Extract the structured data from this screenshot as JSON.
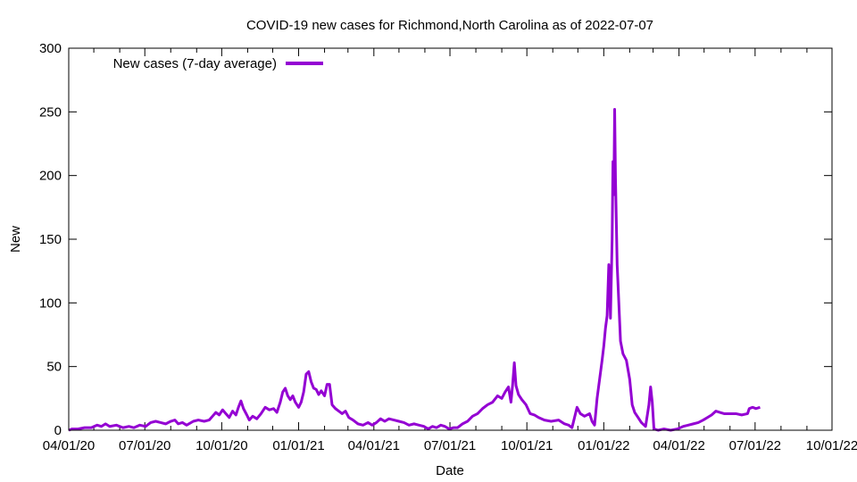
{
  "chart_data": {
    "type": "line",
    "title": "COVID-19 new cases for Richmond,North Carolina as of 2022-07-07",
    "xlabel": "Date",
    "ylabel": "New",
    "ylim": [
      0,
      300
    ],
    "xlim": [
      "2020-04-01",
      "2022-10-01"
    ],
    "y_ticks": [
      "0",
      "50",
      "100",
      "150",
      "200",
      "250",
      "300"
    ],
    "x_ticks": [
      {
        "date": "2020-04-01",
        "label": "04/01/20"
      },
      {
        "date": "2020-07-01",
        "label": "07/01/20"
      },
      {
        "date": "2020-10-01",
        "label": "10/01/20"
      },
      {
        "date": "2021-01-01",
        "label": "01/01/21"
      },
      {
        "date": "2021-04-01",
        "label": "04/01/21"
      },
      {
        "date": "2021-07-01",
        "label": "07/01/21"
      },
      {
        "date": "2021-10-01",
        "label": "10/01/21"
      },
      {
        "date": "2022-01-01",
        "label": "01/01/22"
      },
      {
        "date": "2022-04-01",
        "label": "04/01/22"
      },
      {
        "date": "2022-07-01",
        "label": "07/01/22"
      },
      {
        "date": "2022-10-01",
        "label": "10/01/22"
      }
    ],
    "grid": false,
    "legend_position": "top-left",
    "series": [
      {
        "name": "New cases (7-day average)",
        "color": "#9400d3",
        "points": [
          [
            "2020-04-01",
            0
          ],
          [
            "2020-04-05",
            1
          ],
          [
            "2020-04-12",
            1
          ],
          [
            "2020-04-20",
            2
          ],
          [
            "2020-04-28",
            2
          ],
          [
            "2020-05-05",
            4
          ],
          [
            "2020-05-10",
            3
          ],
          [
            "2020-05-15",
            5
          ],
          [
            "2020-05-20",
            3
          ],
          [
            "2020-05-28",
            4
          ],
          [
            "2020-06-05",
            2
          ],
          [
            "2020-06-12",
            3
          ],
          [
            "2020-06-18",
            2
          ],
          [
            "2020-06-25",
            4
          ],
          [
            "2020-07-02",
            3
          ],
          [
            "2020-07-08",
            6
          ],
          [
            "2020-07-14",
            7
          ],
          [
            "2020-07-20",
            6
          ],
          [
            "2020-07-26",
            5
          ],
          [
            "2020-08-01",
            7
          ],
          [
            "2020-08-06",
            8
          ],
          [
            "2020-08-10",
            5
          ],
          [
            "2020-08-15",
            6
          ],
          [
            "2020-08-20",
            4
          ],
          [
            "2020-08-28",
            7
          ],
          [
            "2020-09-03",
            8
          ],
          [
            "2020-09-10",
            7
          ],
          [
            "2020-09-16",
            8
          ],
          [
            "2020-09-20",
            11
          ],
          [
            "2020-09-24",
            14
          ],
          [
            "2020-09-28",
            12
          ],
          [
            "2020-10-02",
            16
          ],
          [
            "2020-10-06",
            13
          ],
          [
            "2020-10-10",
            10
          ],
          [
            "2020-10-14",
            15
          ],
          [
            "2020-10-18",
            12
          ],
          [
            "2020-10-21",
            18
          ],
          [
            "2020-10-24",
            23
          ],
          [
            "2020-10-27",
            17
          ],
          [
            "2020-10-31",
            12
          ],
          [
            "2020-11-03",
            8
          ],
          [
            "2020-11-07",
            11
          ],
          [
            "2020-11-12",
            9
          ],
          [
            "2020-11-17",
            13
          ],
          [
            "2020-11-22",
            18
          ],
          [
            "2020-11-27",
            16
          ],
          [
            "2020-12-02",
            17
          ],
          [
            "2020-12-06",
            14
          ],
          [
            "2020-12-10",
            22
          ],
          [
            "2020-12-13",
            30
          ],
          [
            "2020-12-16",
            33
          ],
          [
            "2020-12-19",
            27
          ],
          [
            "2020-12-22",
            24
          ],
          [
            "2020-12-25",
            27
          ],
          [
            "2020-12-28",
            22
          ],
          [
            "2021-01-01",
            18
          ],
          [
            "2021-01-04",
            22
          ],
          [
            "2021-01-07",
            30
          ],
          [
            "2021-01-10",
            44
          ],
          [
            "2021-01-13",
            46
          ],
          [
            "2021-01-16",
            38
          ],
          [
            "2021-01-19",
            33
          ],
          [
            "2021-01-22",
            32
          ],
          [
            "2021-01-25",
            28
          ],
          [
            "2021-01-28",
            31
          ],
          [
            "2021-02-01",
            27
          ],
          [
            "2021-02-04",
            36
          ],
          [
            "2021-02-07",
            36
          ],
          [
            "2021-02-10",
            20
          ],
          [
            "2021-02-14",
            17
          ],
          [
            "2021-02-18",
            15
          ],
          [
            "2021-02-22",
            13
          ],
          [
            "2021-02-26",
            15
          ],
          [
            "2021-03-02",
            10
          ],
          [
            "2021-03-07",
            8
          ],
          [
            "2021-03-13",
            5
          ],
          [
            "2021-03-19",
            4
          ],
          [
            "2021-03-25",
            6
          ],
          [
            "2021-03-30",
            4
          ],
          [
            "2021-04-04",
            6
          ],
          [
            "2021-04-09",
            9
          ],
          [
            "2021-04-14",
            7
          ],
          [
            "2021-04-19",
            9
          ],
          [
            "2021-04-25",
            8
          ],
          [
            "2021-05-01",
            7
          ],
          [
            "2021-05-07",
            6
          ],
          [
            "2021-05-13",
            4
          ],
          [
            "2021-05-19",
            5
          ],
          [
            "2021-05-25",
            4
          ],
          [
            "2021-05-31",
            3
          ],
          [
            "2021-06-05",
            1
          ],
          [
            "2021-06-10",
            3
          ],
          [
            "2021-06-15",
            2
          ],
          [
            "2021-06-20",
            4
          ],
          [
            "2021-06-25",
            3
          ],
          [
            "2021-06-30",
            1
          ],
          [
            "2021-07-05",
            2
          ],
          [
            "2021-07-10",
            2
          ],
          [
            "2021-07-16",
            5
          ],
          [
            "2021-07-22",
            7
          ],
          [
            "2021-07-28",
            11
          ],
          [
            "2021-08-03",
            13
          ],
          [
            "2021-08-09",
            17
          ],
          [
            "2021-08-15",
            20
          ],
          [
            "2021-08-21",
            22
          ],
          [
            "2021-08-27",
            27
          ],
          [
            "2021-09-01",
            25
          ],
          [
            "2021-09-05",
            30
          ],
          [
            "2021-09-09",
            34
          ],
          [
            "2021-09-12",
            22
          ],
          [
            "2021-09-14",
            36
          ],
          [
            "2021-09-16",
            53
          ],
          [
            "2021-09-18",
            35
          ],
          [
            "2021-09-21",
            28
          ],
          [
            "2021-09-25",
            24
          ],
          [
            "2021-09-30",
            20
          ],
          [
            "2021-10-05",
            13
          ],
          [
            "2021-10-10",
            12
          ],
          [
            "2021-10-15",
            10
          ],
          [
            "2021-10-22",
            8
          ],
          [
            "2021-10-30",
            7
          ],
          [
            "2021-11-08",
            8
          ],
          [
            "2021-11-15",
            5
          ],
          [
            "2021-11-20",
            4
          ],
          [
            "2021-11-24",
            2
          ],
          [
            "2021-11-27",
            10
          ],
          [
            "2021-11-30",
            18
          ],
          [
            "2021-12-04",
            13
          ],
          [
            "2021-12-09",
            11
          ],
          [
            "2021-12-15",
            13
          ],
          [
            "2021-12-18",
            7
          ],
          [
            "2021-12-21",
            4
          ],
          [
            "2021-12-24",
            25
          ],
          [
            "2021-12-27",
            40
          ],
          [
            "2021-12-30",
            55
          ],
          [
            "2022-01-01",
            66
          ],
          [
            "2022-01-03",
            80
          ],
          [
            "2022-01-05",
            90
          ],
          [
            "2022-01-07",
            130
          ],
          [
            "2022-01-09",
            88
          ],
          [
            "2022-01-11",
            150
          ],
          [
            "2022-01-12",
            211
          ],
          [
            "2022-01-13",
            185
          ],
          [
            "2022-01-14",
            252
          ],
          [
            "2022-01-15",
            198
          ],
          [
            "2022-01-17",
            130
          ],
          [
            "2022-01-19",
            100
          ],
          [
            "2022-01-21",
            70
          ],
          [
            "2022-01-24",
            60
          ],
          [
            "2022-01-28",
            55
          ],
          [
            "2022-02-01",
            40
          ],
          [
            "2022-02-04",
            20
          ],
          [
            "2022-02-07",
            14
          ],
          [
            "2022-02-11",
            10
          ],
          [
            "2022-02-15",
            6
          ],
          [
            "2022-02-20",
            3
          ],
          [
            "2022-02-24",
            20
          ],
          [
            "2022-02-26",
            34
          ],
          [
            "2022-02-28",
            22
          ],
          [
            "2022-03-02",
            1
          ],
          [
            "2022-03-07",
            0
          ],
          [
            "2022-03-14",
            1
          ],
          [
            "2022-03-22",
            0
          ],
          [
            "2022-03-30",
            1
          ],
          [
            "2022-04-06",
            3
          ],
          [
            "2022-04-12",
            4
          ],
          [
            "2022-04-18",
            5
          ],
          [
            "2022-04-24",
            6
          ],
          [
            "2022-04-30",
            8
          ],
          [
            "2022-05-05",
            10
          ],
          [
            "2022-05-10",
            12
          ],
          [
            "2022-05-15",
            15
          ],
          [
            "2022-05-20",
            14
          ],
          [
            "2022-05-25",
            13
          ],
          [
            "2022-06-01",
            13
          ],
          [
            "2022-06-08",
            13
          ],
          [
            "2022-06-15",
            12
          ],
          [
            "2022-06-22",
            13
          ],
          [
            "2022-06-24",
            17
          ],
          [
            "2022-06-28",
            18
          ],
          [
            "2022-07-02",
            17
          ],
          [
            "2022-07-07",
            18
          ]
        ]
      }
    ]
  }
}
